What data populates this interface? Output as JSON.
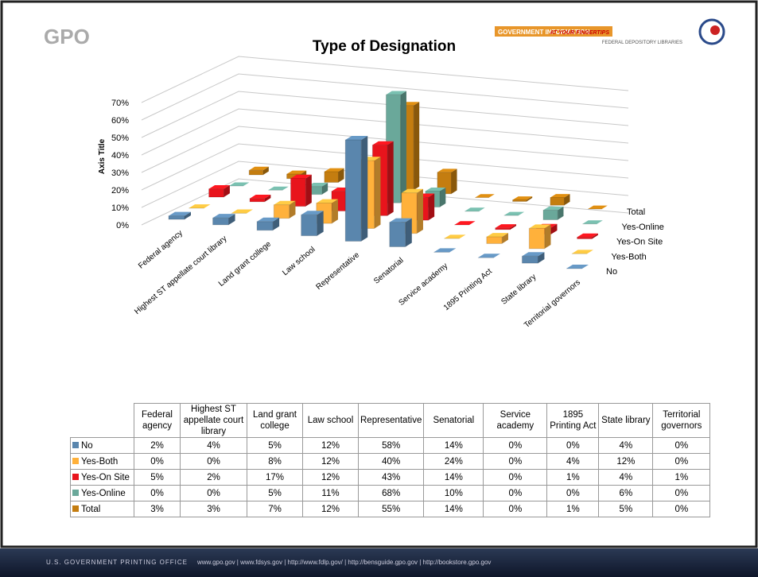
{
  "header": {
    "logo": "GPO",
    "banner": "GOVERNMENT INFORMATION",
    "banner_tagline": "AT YOUR FINGERTIPS",
    "banner_sub": "FEDERAL DEPOSITORY LIBRARIES"
  },
  "chart_data": {
    "type": "bar3d",
    "title": "Type of Designation",
    "y_label": "Axis Title",
    "categories": [
      "Federal agency",
      "Highest ST appellate court library",
      "Land grant college",
      "Law school",
      "Representative",
      "Senatorial",
      "Service academy",
      "1895 Printing Act",
      "State library",
      "Territorial governors"
    ],
    "series": [
      {
        "name": "No",
        "color": "#5a86ad",
        "values": [
          2,
          4,
          5,
          12,
          58,
          14,
          0,
          0,
          4,
          0
        ],
        "value_labels": [
          "2%",
          "4%",
          "5%",
          "12%",
          "58%",
          "14%",
          "0%",
          "0%",
          "4%",
          "0%"
        ]
      },
      {
        "name": "Yes-Both",
        "color": "#ffb13b",
        "values": [
          0,
          0,
          8,
          12,
          40,
          24,
          0,
          4,
          12,
          0
        ],
        "value_labels": [
          "0%",
          "0%",
          "8%",
          "12%",
          "40%",
          "24%",
          "0%",
          "4%",
          "12%",
          "0%"
        ]
      },
      {
        "name": "Yes-On Site",
        "color": "#e8141c",
        "values": [
          5,
          2,
          17,
          12,
          43,
          14,
          0,
          1,
          4,
          1
        ],
        "value_labels": [
          "5%",
          "2%",
          "17%",
          "12%",
          "43%",
          "14%",
          "0%",
          "1%",
          "4%",
          "1%"
        ]
      },
      {
        "name": "Yes-Online",
        "color": "#6aa89a",
        "values": [
          0,
          0,
          5,
          11,
          68,
          10,
          0,
          0,
          6,
          0
        ],
        "value_labels": [
          "0%",
          "0%",
          "5%",
          "11%",
          "68%",
          "10%",
          "0%",
          "0%",
          "6%",
          "0%"
        ]
      },
      {
        "name": "Total",
        "color": "#c47d10",
        "values": [
          3,
          3,
          7,
          12,
          55,
          14,
          0,
          1,
          5,
          0
        ],
        "value_labels": [
          "3%",
          "3%",
          "7%",
          "12%",
          "55%",
          "14%",
          "0%",
          "1%",
          "5%",
          "0%"
        ]
      }
    ],
    "ylim": [
      0,
      70
    ],
    "yticks": [
      {
        "value": 0,
        "label": "0%"
      },
      {
        "value": 10,
        "label": "10%"
      },
      {
        "value": 20,
        "label": "20%"
      },
      {
        "value": 30,
        "label": "30%"
      },
      {
        "value": 40,
        "label": "40%"
      },
      {
        "value": 50,
        "label": "50%"
      },
      {
        "value": 60,
        "label": "60%"
      },
      {
        "value": 70,
        "label": "70%"
      }
    ],
    "grid": true
  },
  "footer": {
    "org": "U.S. GOVERNMENT PRINTING OFFICE",
    "links": "www.gpo.gov | www.fdsys.gov | http://www.fdlp.gov/ | http://bensguide.gpo.gov | http://bookstore.gpo.gov"
  }
}
